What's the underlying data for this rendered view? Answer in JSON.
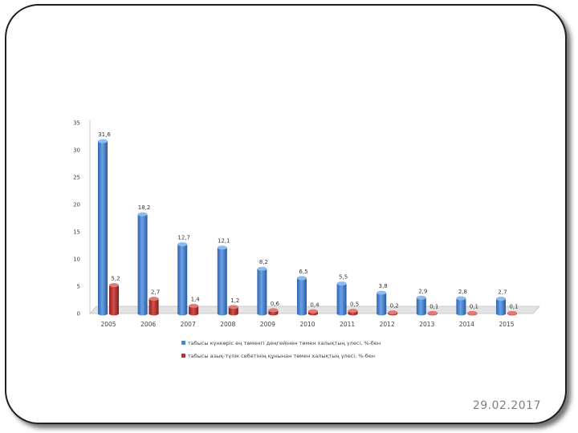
{
  "slide": {
    "date": "29.02.2017"
  },
  "chart_data": {
    "type": "bar",
    "categories": [
      "2005",
      "2006",
      "2007",
      "2008",
      "2009",
      "2010",
      "2011",
      "2012",
      "2013",
      "2014",
      "2015"
    ],
    "series": [
      {
        "name": "табысы күнкөріс ең төменгі деңгейінен төмен халықтың үлесі, %-бен",
        "color": "#4a86d4",
        "values": [
          31.6,
          18.2,
          12.7,
          12.1,
          8.2,
          6.5,
          5.5,
          3.8,
          2.9,
          2.8,
          2.7
        ],
        "labels": [
          "31,6",
          "18,2",
          "12,7",
          "12,1",
          "8,2",
          "6,5",
          "5,5",
          "3,8",
          "2,9",
          "2,8",
          "2,7"
        ]
      },
      {
        "name": "табысы азық-түлік себетінің құнынан төмен халықтың үлесі, %-бен",
        "color": "#b83330",
        "values": [
          5.2,
          2.7,
          1.4,
          1.2,
          0.6,
          0.4,
          0.5,
          0.2,
          0.1,
          0.1,
          0.1
        ],
        "labels": [
          "5,2",
          "2,7",
          "1,4",
          "1,2",
          "0,6",
          "0,4",
          "0,5",
          "0,2",
          "0,1",
          "0,1",
          "0,1"
        ]
      }
    ],
    "y_ticks": [
      "0",
      "5",
      "10",
      "15",
      "20",
      "25",
      "30",
      "35"
    ],
    "ylim": [
      0,
      35
    ],
    "grid": false,
    "legend_position": "bottom"
  }
}
